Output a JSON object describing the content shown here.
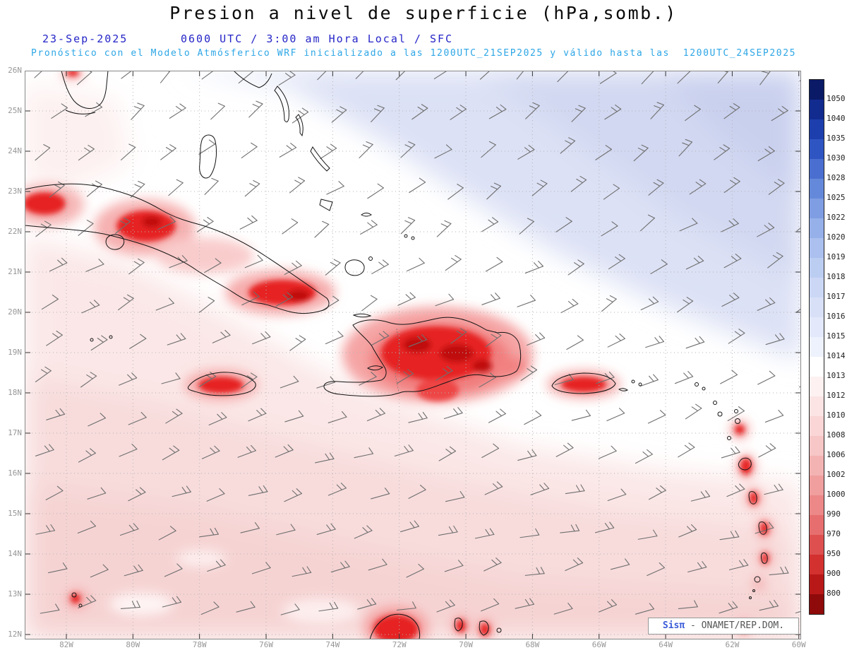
{
  "header": {
    "title": "Presion a nivel de superficie (hPa,somb.)",
    "date": "23-Sep-2025",
    "valid_time": "0600 UTC / 3:00 am Hora Local / SFC",
    "forecast_note": "Pronóstico con el Modelo Atmósferico WRF inicializado a las 1200UTC_21SEP2025 y válido hasta las  1200UTC_24SEP2025"
  },
  "map": {
    "lat_labels": [
      "26N",
      "25N",
      "24N",
      "23N",
      "22N",
      "21N",
      "20N",
      "19N",
      "18N",
      "17N",
      "16N",
      "15N",
      "14N",
      "13N",
      "12N"
    ],
    "lon_labels": [
      "82W",
      "80W",
      "78W",
      "76W",
      "74W",
      "72W",
      "70W",
      "68W",
      "66W",
      "64W",
      "62W",
      "60W"
    ],
    "wind_barbs": {
      "style": "thin gray wind barbs on a regular grid",
      "direction": "easterly to northeasterly trade flow"
    },
    "watermark": {
      "brand": "Sisπ",
      "org": " - ONAMET/REP.DOM."
    }
  },
  "colorbar": {
    "unit": "hPa",
    "labels": [
      "1050",
      "1040",
      "1035",
      "1030",
      "1028",
      "1025",
      "1022",
      "1020",
      "1019",
      "1018",
      "1017",
      "1016",
      "1015",
      "1014",
      "1013",
      "1012",
      "1010",
      "1008",
      "1006",
      "1002",
      "1000",
      "990",
      "970",
      "950",
      "900",
      "800"
    ],
    "band_colors": [
      "#0a1a66",
      "#122b8f",
      "#1d3fae",
      "#2f55c2",
      "#4a6fd0",
      "#6589da",
      "#7f9de2",
      "#96b0e9",
      "#abc0ee",
      "#bccdf2",
      "#cbd7f5",
      "#d8e0f7",
      "#e3e9fa",
      "#eef2fc",
      "#ffffff",
      "#fdf1f1",
      "#fce4e4",
      "#fad6d6",
      "#f7c6c6",
      "#f4b3b3",
      "#f09e9e",
      "#ec8888",
      "#e66e6e",
      "#de5050",
      "#d33030",
      "#b81818",
      "#8f0a0a"
    ]
  },
  "chart_data": {
    "type": "heatmap",
    "title": "Presion a nivel de superficie (hPa,somb.)",
    "region": {
      "lat_range": [
        "12N",
        "26N"
      ],
      "lon_ticks_range": [
        "82W",
        "60W"
      ]
    },
    "scale_hpa": [
      800,
      900,
      950,
      970,
      990,
      1000,
      1002,
      1006,
      1008,
      1010,
      1012,
      1013,
      1014,
      1015,
      1016,
      1017,
      1018,
      1019,
      1020,
      1022,
      1025,
      1028,
      1030,
      1035,
      1040,
      1050
    ],
    "features": [
      "Light blue/lavender shading (about 1015-1019 hPa, higher pressure) covers the northeastern Atlantic quadrant",
      "White band (about 1013-1014 hPa) runs diagonally from the Bahamas toward the central Caribbean",
      "Pale pink shading (about 1010-1012 hPa) covers the southwestern and southern part of the domain",
      "Deep red cores (low shaded values) over Cuba, Jamaica, Hispaniola, Puerto Rico, the Lesser Antilles and the Guajira/ABC islands"
    ]
  }
}
